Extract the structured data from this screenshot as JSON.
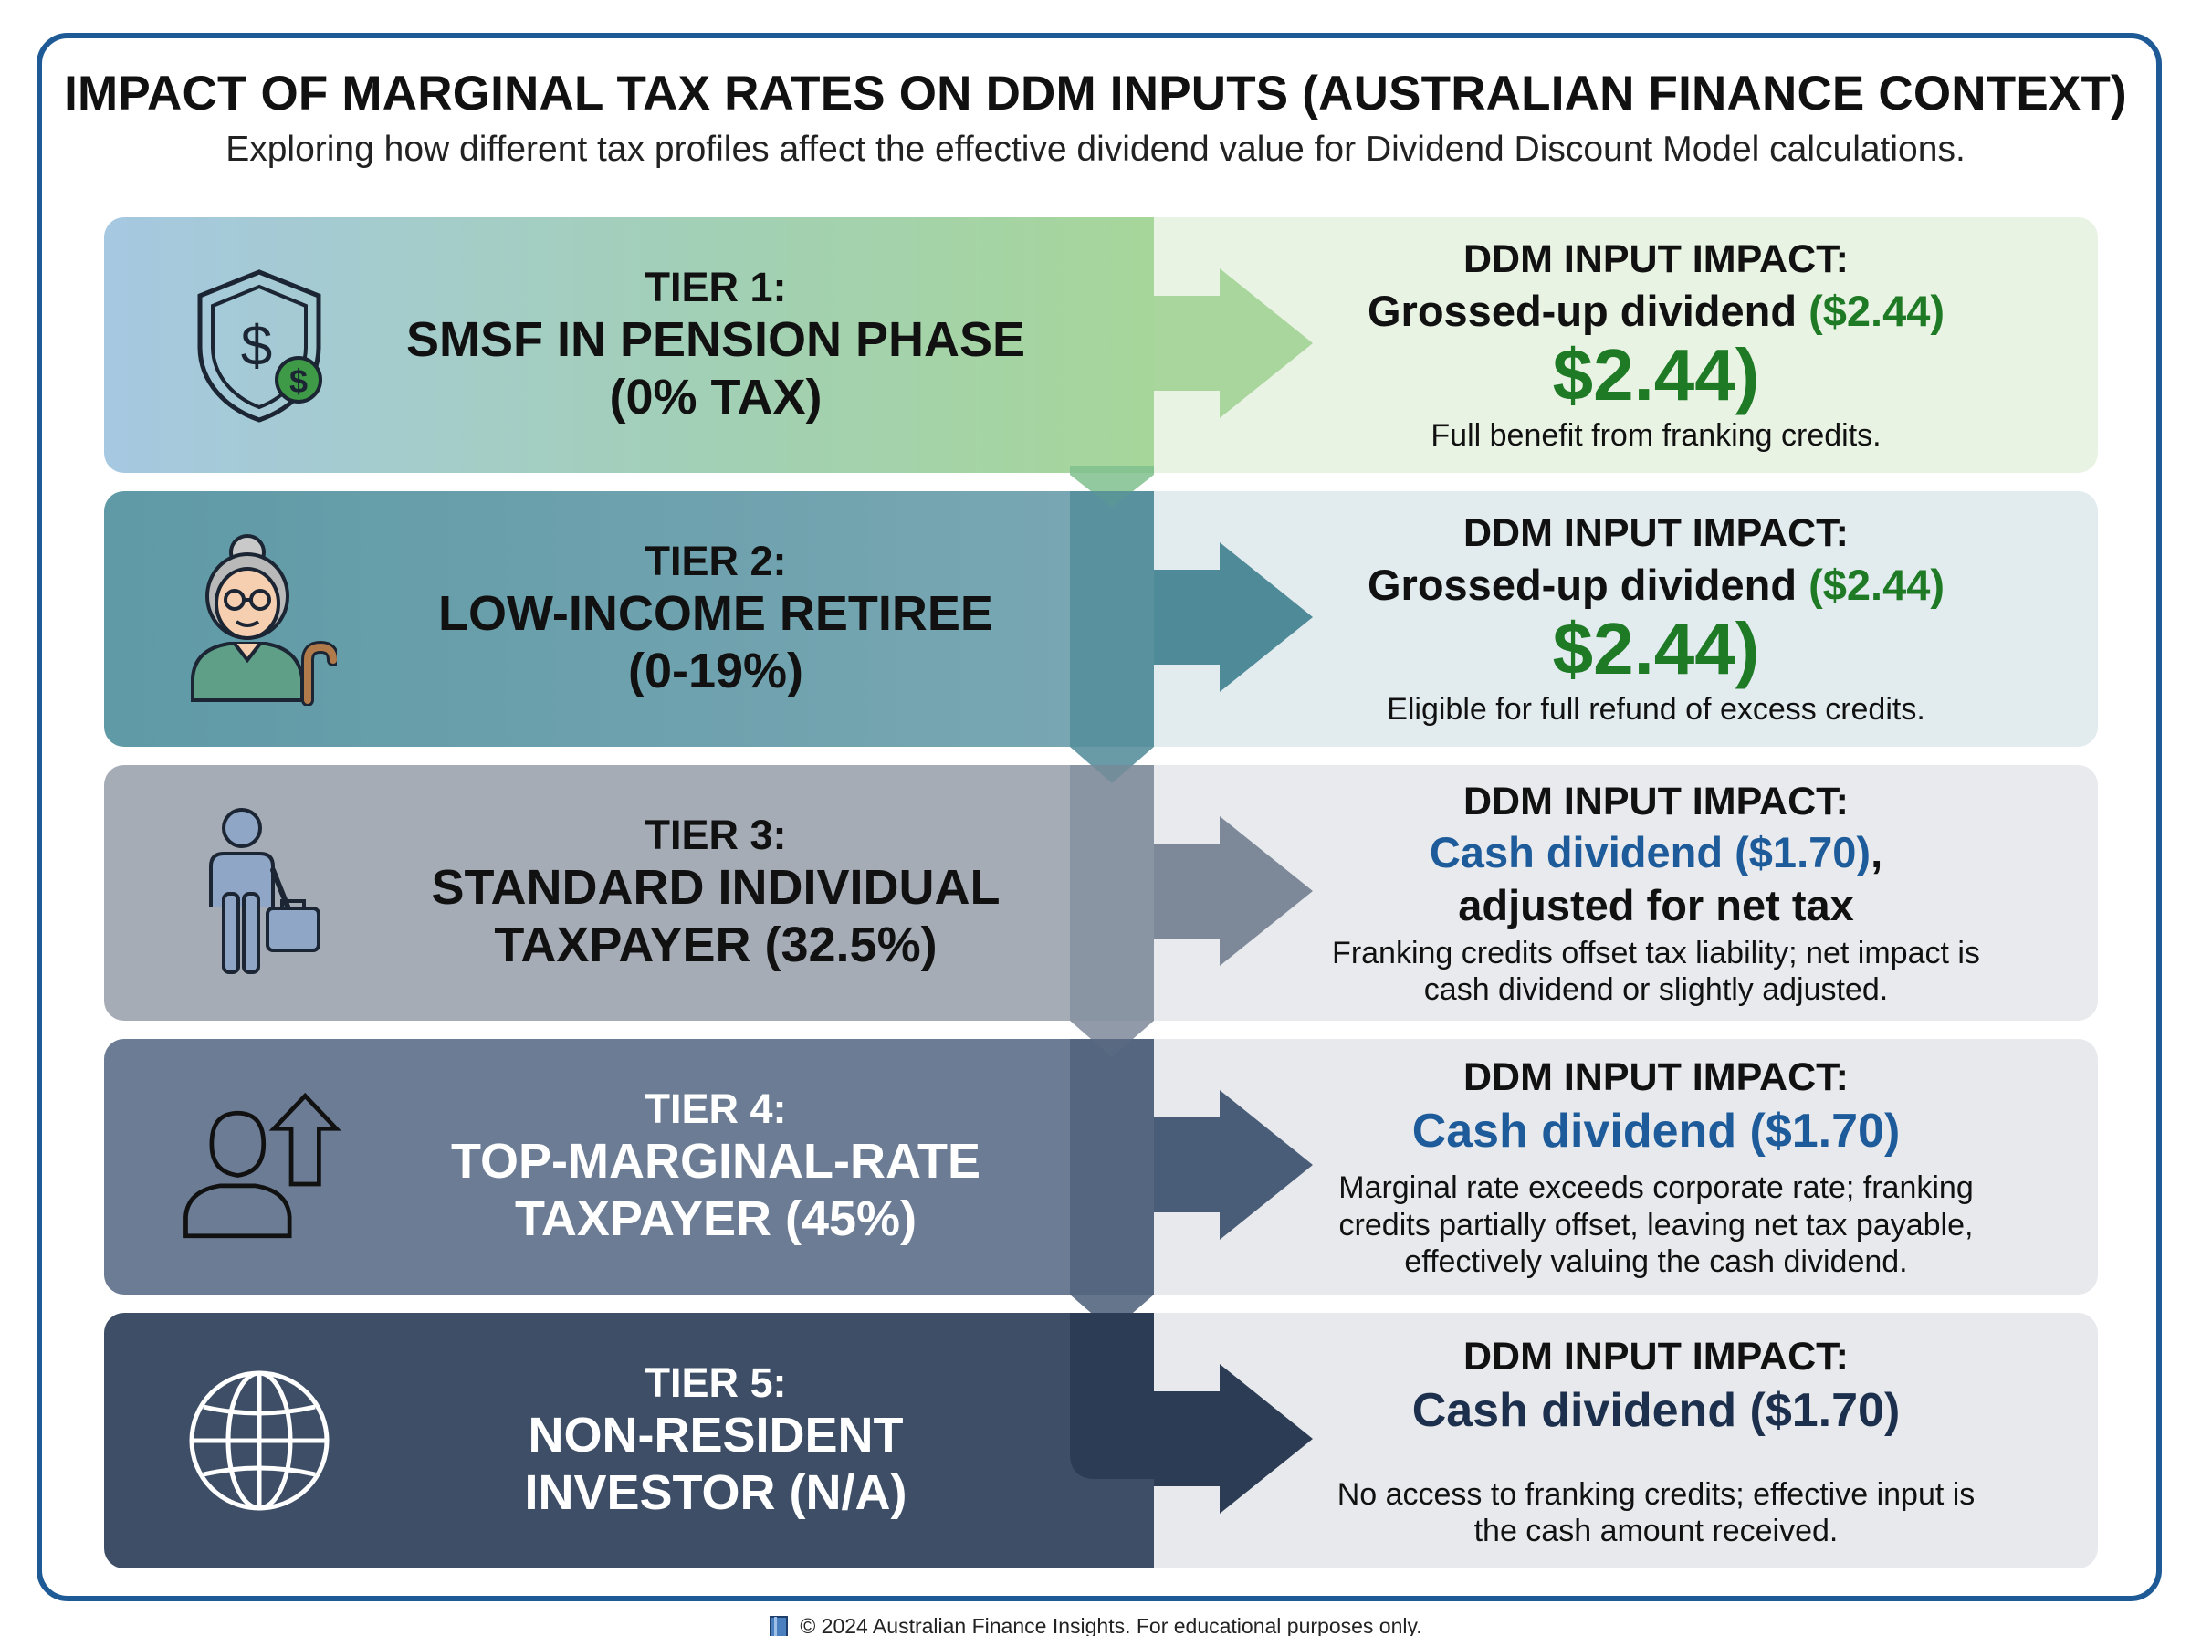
{
  "header": {
    "title": "IMPACT OF MARGINAL TAX RATES ON DDM INPUTS (AUSTRALIAN FINANCE CONTEXT)",
    "subtitle": "Exploring how different tax profiles affect the effective dividend value for Dividend Discount Model calculations."
  },
  "tiers": [
    {
      "label": "TIER 1:",
      "name_line1": "SMSF IN PENSION PHASE",
      "name_line2": "(0% TAX)",
      "icon": "shield-dollar-icon",
      "impact_head": "DDM INPUT IMPACT:",
      "impact_line_main": "Grossed-up dividend",
      "impact_line_value": "($2.44)",
      "impact_big": "$2.44)",
      "note_line1": "Full benefit from franking credits.",
      "color_left": "#a3c6de",
      "color_right": "#e6f2e2"
    },
    {
      "label": "TIER 2:",
      "name_line1": "LOW-INCOME RETIREE",
      "name_line2": "(0-19%)",
      "icon": "retiree-icon",
      "impact_head": "DDM INPUT IMPACT:",
      "impact_line_main": "Grossed-up dividend",
      "impact_line_value": "($2.44)",
      "impact_big": "$2.44)",
      "note_line1": "Eligible for full refund of excess credits.",
      "color_left": "#7ba6b2",
      "color_right": "#e3ecef"
    },
    {
      "label": "TIER 3:",
      "name_line1": "STANDARD INDIVIDUAL",
      "name_line2": "TAXPAYER (32.5%)",
      "icon": "person-briefcase-icon",
      "impact_head": "DDM INPUT IMPACT:",
      "impact_line_main": "Cash dividend ($1.70)",
      "impact_line_suffix": ",",
      "impact_line2": "adjusted for net tax",
      "note_line1": "Franking credits offset tax liability; net impact is",
      "note_line2": "cash dividend or slightly adjusted.",
      "color_left": "#a6adb7",
      "color_right": "#e8eaed"
    },
    {
      "label": "TIER 4:",
      "name_line1": "TOP-MARGINAL-RATE",
      "name_line2": "TAXPAYER (45%)",
      "icon": "person-arrow-up-icon",
      "impact_head": "DDM INPUT IMPACT:",
      "impact_line_main": "Cash dividend ($1.70)",
      "note_line1": "Marginal rate exceeds corporate rate; franking",
      "note_line2": "credits partially offset, leaving net tax payable,",
      "note_line3": "effectively valuing the cash dividend.",
      "color_left": "#6b7c93",
      "color_right": "#e7e9ec"
    },
    {
      "label": "TIER 5:",
      "name_line1": "NON-RESIDENT",
      "name_line2": "INVESTOR (N/A)",
      "icon": "globe-icon",
      "impact_head": "DDM INPUT IMPACT:",
      "impact_line_main": "Cash dividend ($1.70)",
      "note_line1": "No access to franking credits; effective input is",
      "note_line2": "the cash amount received.",
      "color_left": "#3d4e66",
      "color_right": "#e7e9ec"
    }
  ],
  "footer": {
    "text": "© 2024 Australian Finance Insights. For educational purposes only.",
    "icon": "book-icon"
  }
}
